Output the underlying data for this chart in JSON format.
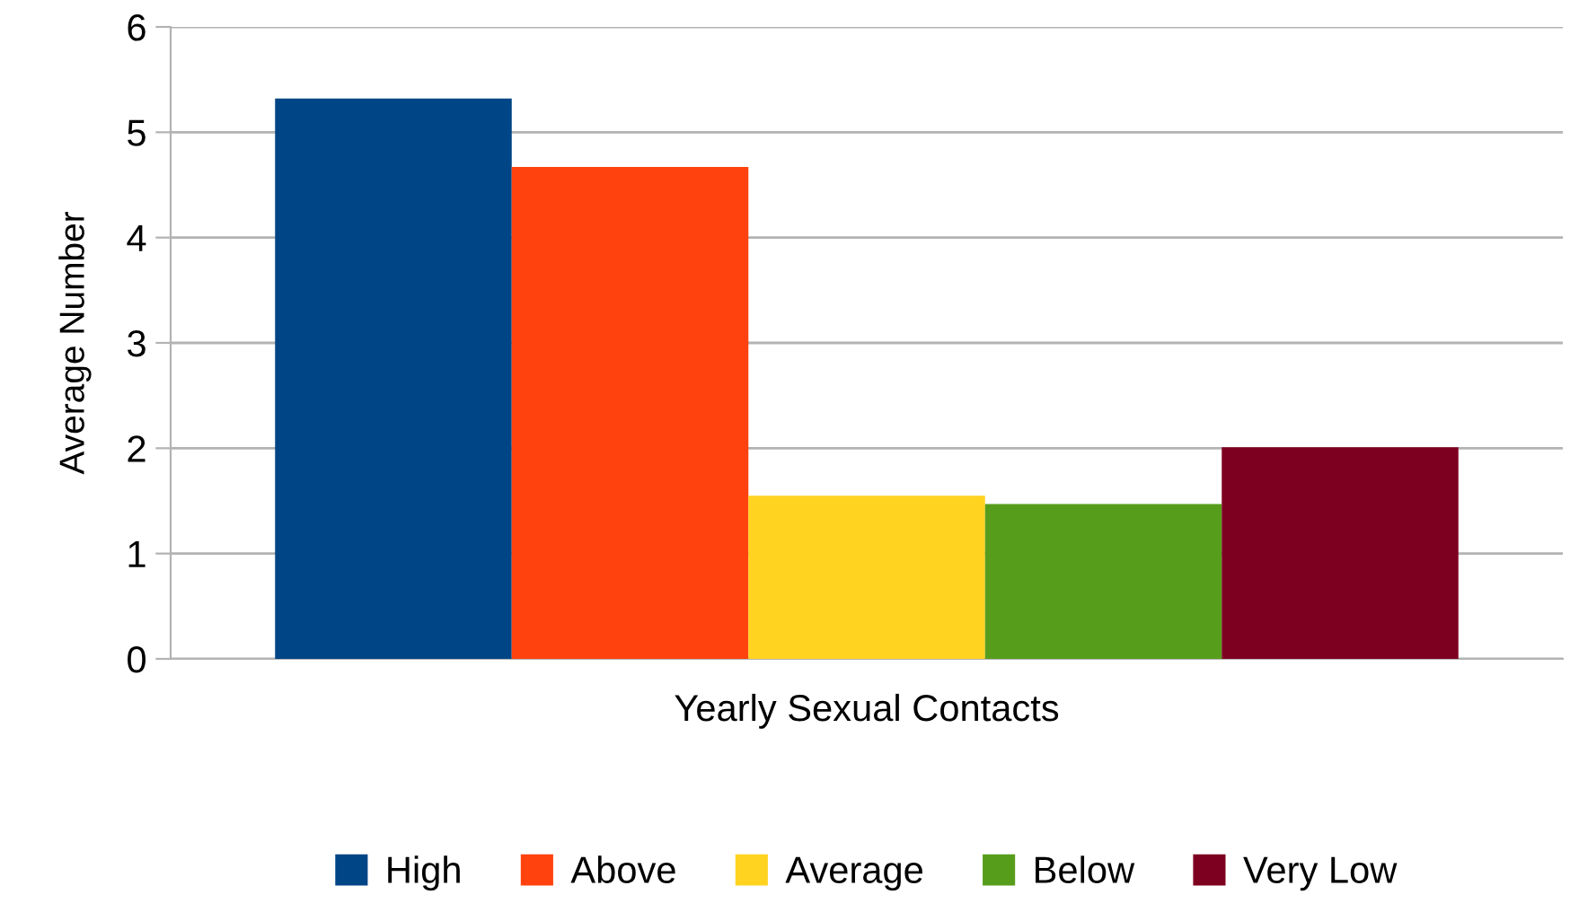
{
  "chart_data": {
    "type": "bar",
    "ylabel": "Average Number",
    "categories": [
      "Yearly Sexual Contacts"
    ],
    "series": [
      {
        "name": "High",
        "color": "#004586",
        "values": [
          5.32
        ]
      },
      {
        "name": "Above",
        "color": "#ff420e",
        "values": [
          4.67
        ]
      },
      {
        "name": "Average",
        "color": "#ffd320",
        "values": [
          1.55
        ]
      },
      {
        "name": "Below",
        "color": "#579d1c",
        "values": [
          1.47
        ]
      },
      {
        "name": "Very Low",
        "color": "#7e0021",
        "values": [
          2.01
        ]
      }
    ],
    "ylim": [
      0,
      6
    ],
    "yticks": [
      0,
      1,
      2,
      3,
      4,
      5,
      6
    ],
    "grid": "y",
    "legend": "bottom"
  }
}
